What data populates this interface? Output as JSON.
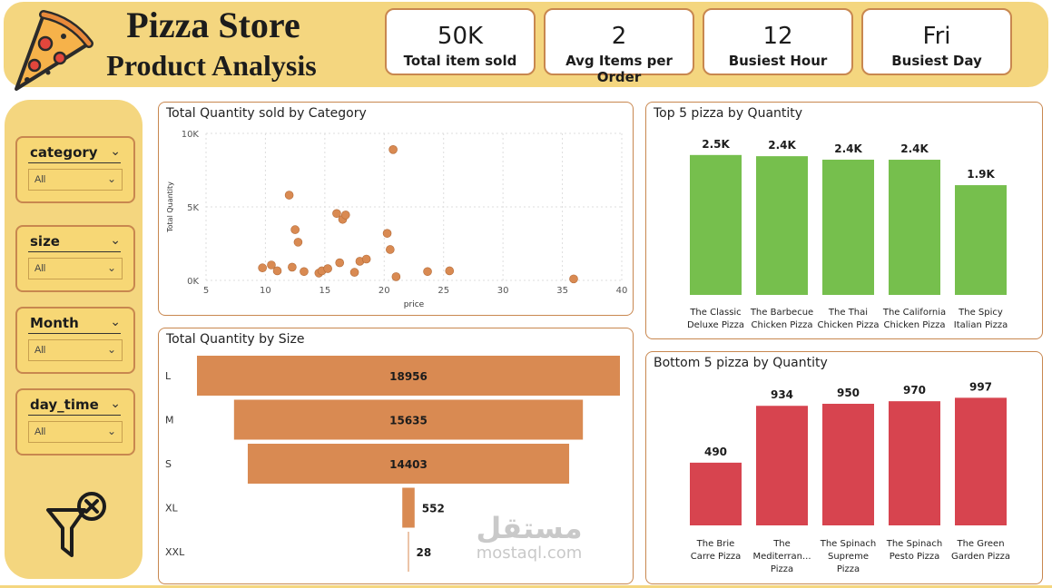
{
  "header": {
    "title_line1": "Pizza Store",
    "title_line2": "Product Analysis"
  },
  "kpis": [
    {
      "value": "50K",
      "label": "Total item sold"
    },
    {
      "value": "2",
      "label": "Avg Items per Order"
    },
    {
      "value": "12",
      "label": "Busiest Hour"
    },
    {
      "value": "Fri",
      "label": "Busiest Day"
    }
  ],
  "slicers": [
    {
      "name": "category",
      "selected": "All"
    },
    {
      "name": "size",
      "selected": "All"
    },
    {
      "name": "Month",
      "selected": "All"
    },
    {
      "name": "day_time",
      "selected": "All"
    }
  ],
  "watermark": {
    "arabic": "مستقل",
    "latin": "mostaql.com"
  },
  "colors": {
    "header_bg": "#f4d67f",
    "border": "#c8874f",
    "orange": "#d98a52",
    "green": "#76bf4d",
    "red": "#d7444f"
  },
  "chart_data": [
    {
      "type": "scatter",
      "title": "Total Quantity sold by Category",
      "xlabel": "price",
      "ylabel": "Total Quantity",
      "xlim": [
        5,
        40
      ],
      "ylim": [
        0,
        10000
      ],
      "xticks": [
        5,
        10,
        15,
        20,
        25,
        30,
        35,
        40
      ],
      "yticks": [
        0,
        5000,
        10000
      ],
      "ytick_labels": [
        "0K",
        "5K",
        "10K"
      ],
      "grid": true,
      "points": [
        {
          "x": 9.75,
          "y": 850
        },
        {
          "x": 10.5,
          "y": 1050
        },
        {
          "x": 11,
          "y": 650
        },
        {
          "x": 12,
          "y": 5800
        },
        {
          "x": 12.25,
          "y": 900
        },
        {
          "x": 12.5,
          "y": 3450
        },
        {
          "x": 12.75,
          "y": 2600
        },
        {
          "x": 13.25,
          "y": 600
        },
        {
          "x": 14.5,
          "y": 500
        },
        {
          "x": 14.75,
          "y": 650
        },
        {
          "x": 15.25,
          "y": 800
        },
        {
          "x": 16,
          "y": 4550
        },
        {
          "x": 16.25,
          "y": 1200
        },
        {
          "x": 16.5,
          "y": 4150
        },
        {
          "x": 16.75,
          "y": 4450
        },
        {
          "x": 17.5,
          "y": 550
        },
        {
          "x": 17.95,
          "y": 1300
        },
        {
          "x": 18.5,
          "y": 1450
        },
        {
          "x": 20.25,
          "y": 3200
        },
        {
          "x": 20.5,
          "y": 2100
        },
        {
          "x": 20.75,
          "y": 8900
        },
        {
          "x": 21,
          "y": 250
        },
        {
          "x": 23.65,
          "y": 600
        },
        {
          "x": 25.5,
          "y": 650
        },
        {
          "x": 35.95,
          "y": 100
        }
      ]
    },
    {
      "type": "bar",
      "orientation": "horizontal-funnel",
      "title": "Total Quantity by Size",
      "categories": [
        "L",
        "M",
        "S",
        "XL",
        "XXL"
      ],
      "values": [
        18956,
        15635,
        14403,
        552,
        28
      ],
      "labels": [
        "18956",
        "15635",
        "14403",
        "552",
        "28"
      ]
    },
    {
      "type": "bar",
      "title": "Top 5 pizza by Quantity",
      "categories": [
        "The Classic Deluxe Pizza",
        "The Barbecue Chicken Pizza",
        "The Thai Chicken Pizza",
        "The California Chicken Pizza",
        "The Spicy Italian Pizza"
      ],
      "category_lines": [
        [
          "The Classic",
          "Deluxe Pizza"
        ],
        [
          "The Barbecue",
          "Chicken Pizza"
        ],
        [
          "The Thai",
          "Chicken Pizza"
        ],
        [
          "The California",
          "Chicken Pizza"
        ],
        [
          "The Spicy",
          "Italian Pizza"
        ]
      ],
      "values": [
        2453,
        2432,
        2371,
        2370,
        1924
      ],
      "labels": [
        "2.5K",
        "2.4K",
        "2.4K",
        "2.4K",
        "1.9K"
      ],
      "ylim": [
        0,
        2800
      ],
      "color": "#76bf4d"
    },
    {
      "type": "bar",
      "title": "Bottom 5 pizza by Quantity",
      "categories": [
        "The Brie Carre Pizza",
        "The Mediterranean Pizza",
        "The Spinach Supreme Pizza",
        "The Spinach Pesto Pizza",
        "The Green Garden Pizza"
      ],
      "category_lines": [
        [
          "The Brie",
          "Carre Pizza"
        ],
        [
          "The",
          "Mediterran...",
          "Pizza"
        ],
        [
          "The Spinach",
          "Supreme",
          "Pizza"
        ],
        [
          "The Spinach",
          "Pesto Pizza"
        ],
        [
          "The Green",
          "Garden Pizza"
        ]
      ],
      "values": [
        490,
        934,
        950,
        970,
        997
      ],
      "labels": [
        "490",
        "934",
        "950",
        "970",
        "997"
      ],
      "ylim": [
        0,
        1120
      ],
      "color": "#d7444f"
    }
  ]
}
